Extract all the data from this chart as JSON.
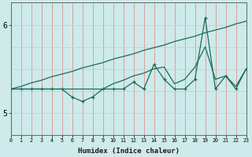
{
  "xlabel": "Humidex (Indice chaleur)",
  "ylabel": "",
  "bg_color": "#ceeaea",
  "line_color": "#1a6b5a",
  "grid_color": "#b8d8d8",
  "x_values": [
    0,
    1,
    2,
    3,
    4,
    5,
    6,
    7,
    8,
    9,
    10,
    11,
    12,
    13,
    14,
    15,
    16,
    17,
    18,
    19,
    20,
    21,
    22,
    23
  ],
  "y_jagged": [
    5.27,
    5.27,
    5.27,
    5.27,
    5.27,
    5.27,
    5.18,
    5.13,
    5.18,
    5.27,
    5.27,
    5.27,
    5.35,
    5.27,
    5.55,
    5.38,
    5.27,
    5.27,
    5.38,
    6.08,
    5.27,
    5.42,
    5.27,
    5.5
  ],
  "y_smooth": [
    5.27,
    5.27,
    5.27,
    5.27,
    5.27,
    5.27,
    5.27,
    5.27,
    5.27,
    5.27,
    5.33,
    5.37,
    5.42,
    5.45,
    5.5,
    5.52,
    5.33,
    5.38,
    5.52,
    5.75,
    5.38,
    5.42,
    5.3,
    5.5
  ],
  "y_linear": [
    5.27,
    5.3,
    5.34,
    5.37,
    5.41,
    5.44,
    5.47,
    5.51,
    5.54,
    5.57,
    5.61,
    5.64,
    5.67,
    5.71,
    5.74,
    5.77,
    5.81,
    5.84,
    5.87,
    5.91,
    5.94,
    5.97,
    6.01,
    6.04
  ],
  "xlim": [
    0,
    23
  ],
  "ylim": [
    4.75,
    6.25
  ],
  "yticks": [
    5,
    6
  ],
  "xticks": [
    0,
    1,
    2,
    3,
    4,
    5,
    6,
    7,
    8,
    9,
    10,
    11,
    12,
    13,
    14,
    15,
    16,
    17,
    18,
    19,
    20,
    21,
    22,
    23
  ]
}
